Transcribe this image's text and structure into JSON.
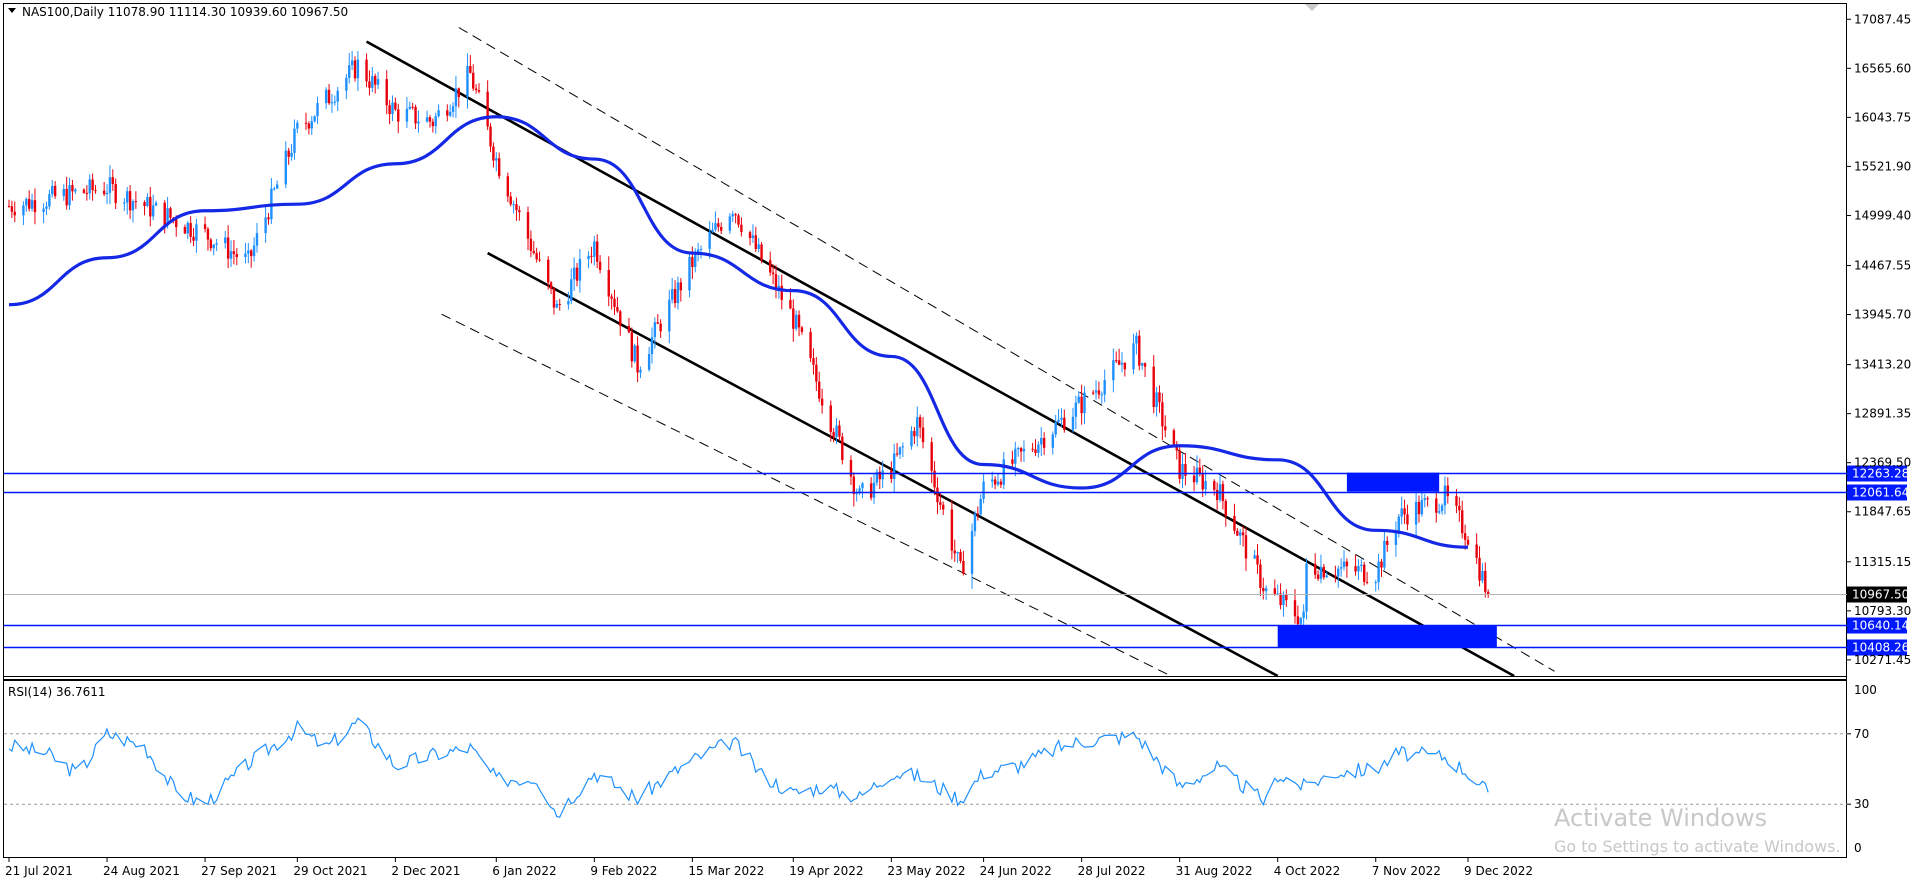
{
  "header": {
    "symbol_info": "NAS100,Daily  11078.90 11114.30 10939.60 10967.50"
  },
  "rsi": {
    "label": "RSI(14) 36.7611",
    "levels": [
      "100",
      "70",
      "30",
      "0"
    ]
  },
  "watermark": {
    "title": "Activate Windows",
    "subtitle": "Go to Settings to activate Windows."
  },
  "colors": {
    "bull": "#1e90ff",
    "bear": "#e8000b",
    "ma": "#1428e6",
    "level": "#0018ff",
    "zone": "#0018ff",
    "rsi": "#1e90ff",
    "price_badge": "#000000"
  },
  "chart_data": [
    {
      "type": "candlestick",
      "title": "NAS100,Daily",
      "ohlc_last": {
        "open": 11078.9,
        "high": 11114.3,
        "low": 10939.6,
        "close": 10967.5
      },
      "ylim": [
        10100,
        17250
      ],
      "y_ticks": [
        "17087.45",
        "16565.60",
        "16043.75",
        "15521.90",
        "14999.40",
        "14467.55",
        "13945.70",
        "13413.20",
        "12891.35",
        "12369.50",
        "11847.65",
        "11315.15",
        "10793.30",
        "10271.45"
      ],
      "x_ticks": [
        "21 Jul 2021",
        "24 Aug 2021",
        "27 Sep 2021",
        "29 Oct 2021",
        "2 Dec 2021",
        "6 Jan 2022",
        "9 Feb 2022",
        "15 Mar 2022",
        "19 Apr 2022",
        "23 May 2022",
        "24 Jun 2022",
        "28 Jul 2022",
        "31 Aug 2022",
        "4 Oct 2022",
        "7 Nov 2022",
        "9 Dec 2022"
      ],
      "close_path": [
        [
          "21 Jul 2021",
          15100
        ],
        [
          "24 Aug 2021",
          15300
        ],
        [
          "27 Sep 2021",
          14800
        ],
        [
          "12 Oct 2021",
          14500
        ],
        [
          "29 Oct 2021",
          15900
        ],
        [
          "19 Nov 2021",
          16600
        ],
        [
          "2 Dec 2021",
          16100
        ],
        [
          "15 Dec 2021",
          16000
        ],
        [
          "28 Dec 2021",
          16500
        ],
        [
          "6 Jan 2022",
          15600
        ],
        [
          "27 Jan 2022",
          14000
        ],
        [
          "9 Feb 2022",
          14700
        ],
        [
          "24 Feb 2022",
          13400
        ],
        [
          "15 Mar 2022",
          14500
        ],
        [
          "29 Mar 2022",
          15100
        ],
        [
          "19 Apr 2022",
          13900
        ],
        [
          "12 May 2022",
          12000
        ],
        [
          "23 May 2022",
          12300
        ],
        [
          "1 Jun 2022",
          12800
        ],
        [
          "16 Jun 2022",
          11200
        ],
        [
          "24 Jun 2022",
          12100
        ],
        [
          "28 Jul 2022",
          13000
        ],
        [
          "16 Aug 2022",
          13600
        ],
        [
          "31 Aug 2022",
          12300
        ],
        [
          "13 Sep 2022",
          12100
        ],
        [
          "30 Sep 2022",
          11000
        ],
        [
          "13 Oct 2022",
          10700
        ],
        [
          "4 Oct 2022",
          11300
        ],
        [
          "7 Nov 2022",
          11200
        ],
        [
          "15 Nov 2022",
          11800
        ],
        [
          "1 Dec 2022",
          12000
        ],
        [
          "9 Dec 2022",
          11600
        ],
        [
          "16 Dec 2022",
          10967.5
        ]
      ],
      "moving_average": [
        [
          "21 Jul 2021",
          14050
        ],
        [
          "24 Aug 2021",
          14550
        ],
        [
          "27 Sep 2021",
          15050
        ],
        [
          "29 Oct 2021",
          15120
        ],
        [
          "2 Dec 2021",
          15550
        ],
        [
          "6 Jan 2022",
          16050
        ],
        [
          "9 Feb 2022",
          15600
        ],
        [
          "15 Mar 2022",
          14600
        ],
        [
          "19 Apr 2022",
          14200
        ],
        [
          "23 May 2022",
          13500
        ],
        [
          "24 Jun 2022",
          12350
        ],
        [
          "28 Jul 2022",
          12100
        ],
        [
          "31 Aug 2022",
          12550
        ],
        [
          "4 Oct 2022",
          12400
        ],
        [
          "7 Nov 2022",
          11650
        ],
        [
          "9 Dec 2022",
          11470
        ]
      ],
      "levels": [
        12263.28,
        12061.64,
        10640.14,
        10408.26
      ],
      "current_price": 10967.5,
      "zones": [
        {
          "from": "28 Oct 2022",
          "to": "29 Nov 2022",
          "low": 12061.64,
          "high": 12263.28
        },
        {
          "from": "4 Oct 2022",
          "to": "19 Dec 2022",
          "low": 10408.26,
          "high": 10640.14
        }
      ],
      "channel": {
        "upper": [
          [
            "22 Nov 2021",
            16850
          ],
          [
            "25 Dec 2022",
            10100
          ]
        ],
        "lower": [
          [
            "3 Jan 2022",
            14600
          ],
          [
            "4 Oct 2022",
            10100
          ]
        ],
        "upper_dashed": [
          [
            "24 Dec 2021",
            17000
          ],
          [
            "8 Jan 2023",
            10150
          ]
        ],
        "lower_dashed": [
          [
            "18 Dec 2021",
            13950
          ],
          [
            "28 Aug 2022",
            10100
          ]
        ]
      }
    },
    {
      "type": "line",
      "title": "RSI(14) 36.7611",
      "ylim": [
        0,
        100
      ],
      "levels": [
        70,
        30
      ],
      "points": [
        [
          "21 Jul 2021",
          63
        ],
        [
          "3 Aug 2021",
          59
        ],
        [
          "14 Aug 2021",
          47
        ],
        [
          "24 Aug 2021",
          70
        ],
        [
          "6 Sep 2021",
          63
        ],
        [
          "17 Sep 2021",
          37
        ],
        [
          "27 Sep 2021",
          30
        ],
        [
          "12 Oct 2021",
          53
        ],
        [
          "29 Oct 2021",
          73
        ],
        [
          "8 Nov 2021",
          62
        ],
        [
          "19 Nov 2021",
          77
        ],
        [
          "2 Dec 2021",
          52
        ],
        [
          "15 Dec 2021",
          58
        ],
        [
          "28 Dec 2021",
          62
        ],
        [
          "6 Jan 2022",
          44
        ],
        [
          "20 Jan 2022",
          45
        ],
        [
          "27 Jan 2022",
          25
        ],
        [
          "9 Feb 2022",
          48
        ],
        [
          "24 Feb 2022",
          33
        ],
        [
          "3 Mar 2022",
          42
        ],
        [
          "15 Mar 2022",
          55
        ],
        [
          "29 Mar 2022",
          66
        ],
        [
          "8 Apr 2022",
          47
        ],
        [
          "19 Apr 2022",
          36
        ],
        [
          "29 Apr 2022",
          40
        ],
        [
          "12 May 2022",
          34
        ],
        [
          "23 May 2022",
          48
        ],
        [
          "1 Jun 2022",
          46
        ],
        [
          "16 Jun 2022",
          33
        ],
        [
          "24 Jun 2022",
          48
        ],
        [
          "6 Jul 2022",
          52
        ],
        [
          "20 Jul 2022",
          62
        ],
        [
          "28 Jul 2022",
          66
        ],
        [
          "16 Aug 2022",
          69
        ],
        [
          "31 Aug 2022",
          40
        ],
        [
          "13 Sep 2022",
          51
        ],
        [
          "30 Sep 2022",
          31
        ],
        [
          "4 Oct 2022",
          47
        ],
        [
          "13 Oct 2022",
          40
        ],
        [
          "24 Oct 2022",
          48
        ],
        [
          "7 Nov 2022",
          50
        ],
        [
          "15 Nov 2022",
          59
        ],
        [
          "1 Dec 2022",
          57
        ],
        [
          "9 Dec 2022",
          48
        ],
        [
          "16 Dec 2022",
          36.76
        ]
      ]
    }
  ]
}
